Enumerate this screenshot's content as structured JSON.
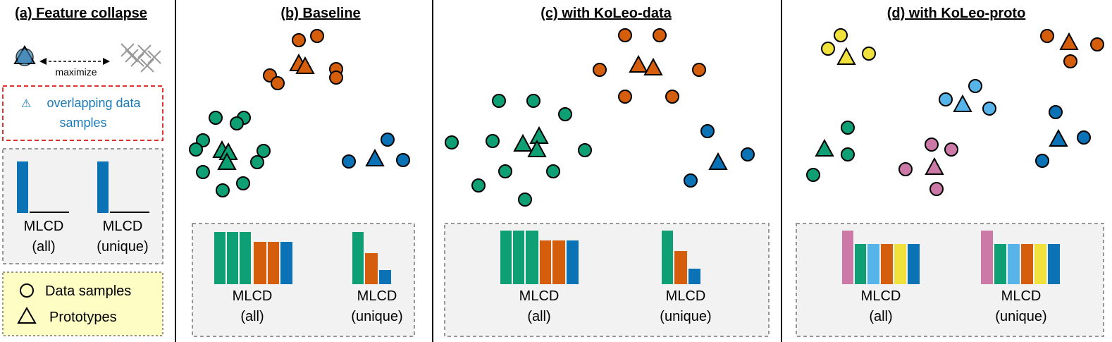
{
  "colors": {
    "green": "#0e9f75",
    "orange": "#d55e0c",
    "blue": "#0a72b5",
    "yellow": "#f0e13c",
    "lightblue": "#56b4e9",
    "pink": "#cc79a7",
    "panel_bg": "#f2f2f2",
    "legend_bg": "#fdfdc4",
    "warning_red": "#e03030",
    "warning_text": "#1a7ab8"
  },
  "panels": {
    "a": {
      "title": "(a) Feature collapse",
      "maximize_label": "maximize",
      "warning_icon": "warning-icon",
      "warning_line1": "overlapping data",
      "warning_line2": "samples",
      "mlcd_all": [
        "MLCD",
        "(all)"
      ],
      "mlcd_unique": [
        "MLCD",
        "(unique)"
      ],
      "legend_data": "Data samples",
      "legend_proto": "Prototypes"
    },
    "b": {
      "title": "(b) Baseline",
      "mlcd_all": [
        "MLCD",
        "(all)"
      ],
      "mlcd_unique": [
        "MLCD",
        "(unique)"
      ]
    },
    "c": {
      "title": "(c) with KoLeo-data",
      "mlcd_all": [
        "MLCD",
        "(all)"
      ],
      "mlcd_unique": [
        "MLCD",
        "(unique)"
      ]
    },
    "d": {
      "title": "(d) with KoLeo-proto",
      "mlcd_all": [
        "MLCD",
        "(all)"
      ],
      "mlcd_unique": [
        "MLCD",
        "(unique)"
      ]
    }
  }
}
